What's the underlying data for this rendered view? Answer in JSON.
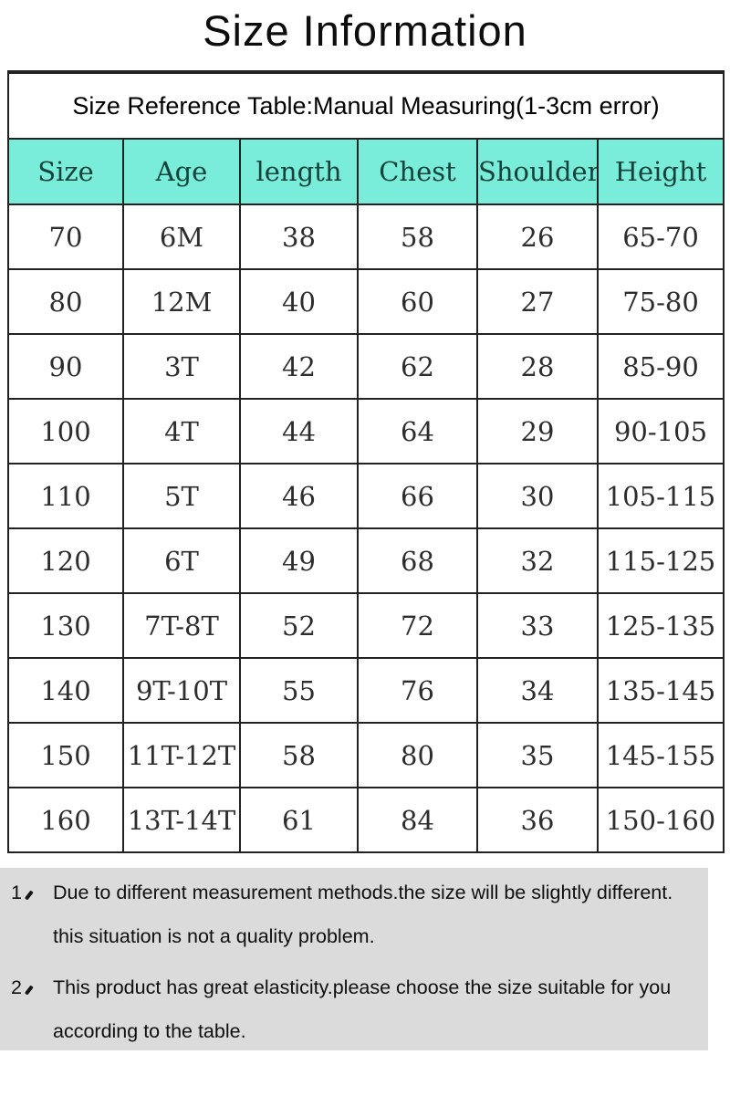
{
  "page": {
    "title": "Size Information"
  },
  "table": {
    "caption": "Size Reference Table:Manual Measuring(1-3cm error)",
    "columns": [
      "Size",
      "Age",
      "length",
      "Chest",
      "Shoulder",
      "Height"
    ],
    "rows": [
      [
        "70",
        "6M",
        "38",
        "58",
        "26",
        "65-70"
      ],
      [
        "80",
        "12M",
        "40",
        "60",
        "27",
        "75-80"
      ],
      [
        "90",
        "3T",
        "42",
        "62",
        "28",
        "85-90"
      ],
      [
        "100",
        "4T",
        "44",
        "64",
        "29",
        "90-105"
      ],
      [
        "110",
        "5T",
        "46",
        "66",
        "30",
        "105-115"
      ],
      [
        "120",
        "6T",
        "49",
        "68",
        "32",
        "115-125"
      ],
      [
        "130",
        "7T-8T",
        "52",
        "72",
        "33",
        "125-135"
      ],
      [
        "140",
        "9T-10T",
        "55",
        "76",
        "34",
        "135-145"
      ],
      [
        "150",
        "11T-12T",
        "58",
        "80",
        "35",
        "145-155"
      ],
      [
        "160",
        "13T-14T",
        "61",
        "84",
        "36",
        "150-160"
      ]
    ]
  },
  "notes": [
    {
      "num": "1、",
      "lines": [
        "Due to different measurement methods.the size will be slightly different.",
        "this situation is not a quality problem."
      ]
    },
    {
      "num": "2、",
      "lines": [
        "This product has great elasticity.please choose the size suitable for you",
        "according to the table."
      ]
    }
  ],
  "colors": {
    "header_bg": "#79EDD9",
    "header_text": "#15433B",
    "notes_bg": "#DBDBDB",
    "border": "#222222"
  }
}
